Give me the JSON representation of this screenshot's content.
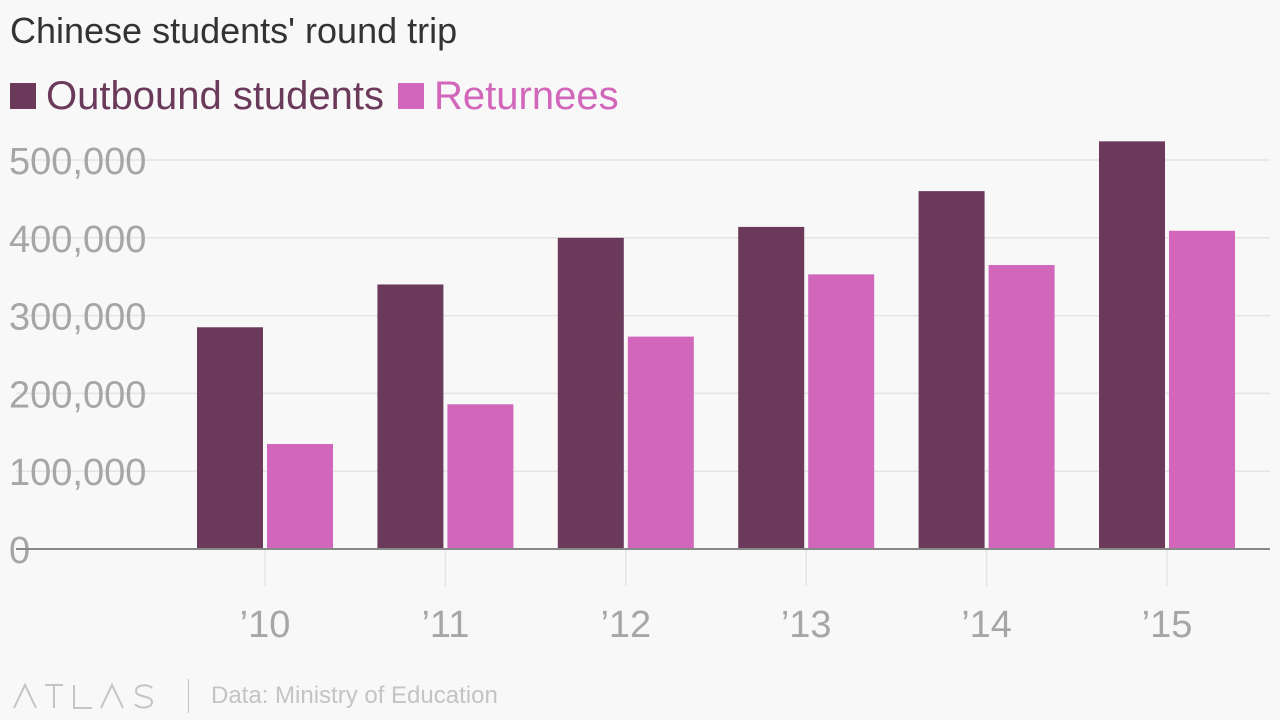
{
  "chart_data": {
    "type": "bar",
    "title": "Chinese students' round trip",
    "categories": [
      "’10",
      "’11",
      "’12",
      "’13",
      "’14",
      "’15"
    ],
    "series": [
      {
        "name": "Outbound students",
        "color": "#6b3a5b",
        "values": [
          285000,
          340000,
          400000,
          414000,
          460000,
          524000
        ]
      },
      {
        "name": "Returnees",
        "color": "#d166bb",
        "values": [
          135000,
          186000,
          273000,
          353000,
          365000,
          409000
        ]
      }
    ],
    "yticks": [
      "0",
      "100,000",
      "200,000",
      "300,000",
      "400,000",
      "500,000"
    ],
    "ylim": [
      0,
      500000
    ],
    "xlabel": "",
    "ylabel": "",
    "grid": true,
    "legend": "top-left"
  },
  "footer": {
    "logo": "ATLAS",
    "source": "Data: Ministry of Education"
  },
  "colors": {
    "background": "#f8f8f8",
    "grid": "#e4e4e4",
    "axis_text": "#a6a6a6",
    "footer_text": "#c4c4c4"
  }
}
